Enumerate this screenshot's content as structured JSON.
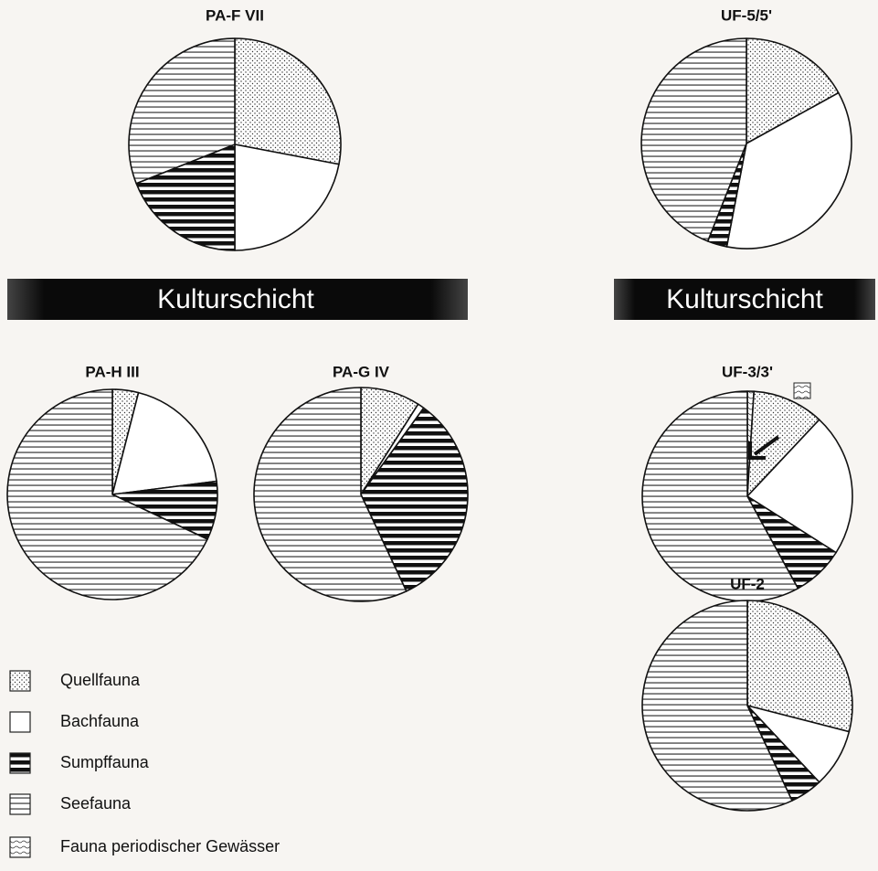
{
  "legend": [
    {
      "name": "Quellfauna",
      "pattern": "dots"
    },
    {
      "name": "Bachfauna",
      "pattern": "blank"
    },
    {
      "name": "Sumpffauna",
      "pattern": "thick-stripes"
    },
    {
      "name": "Seefauna",
      "pattern": "thin-stripes"
    },
    {
      "name": "Fauna periodischer Gewässer",
      "pattern": "waves"
    }
  ],
  "banners": [
    "Kulturschicht",
    "Kulturschicht"
  ],
  "chart_data": [
    {
      "type": "pie",
      "title": "PA-F VII",
      "values": [
        28,
        22,
        19,
        31,
        null
      ]
    },
    {
      "type": "pie",
      "title": "UF-5/5'",
      "values": [
        17,
        36,
        3,
        44,
        null
      ]
    },
    {
      "type": "pie",
      "title": "PA-H III",
      "values": [
        4,
        19,
        9,
        68,
        null
      ]
    },
    {
      "type": "pie",
      "title": "PA-G IV",
      "values": [
        9,
        1,
        33,
        57,
        null
      ]
    },
    {
      "type": "pie",
      "title": "UF-3/3'",
      "values": [
        11,
        22,
        8,
        58,
        1
      ]
    },
    {
      "type": "pie",
      "title": "UF-2",
      "values": [
        29,
        9,
        5,
        57,
        null
      ]
    }
  ]
}
